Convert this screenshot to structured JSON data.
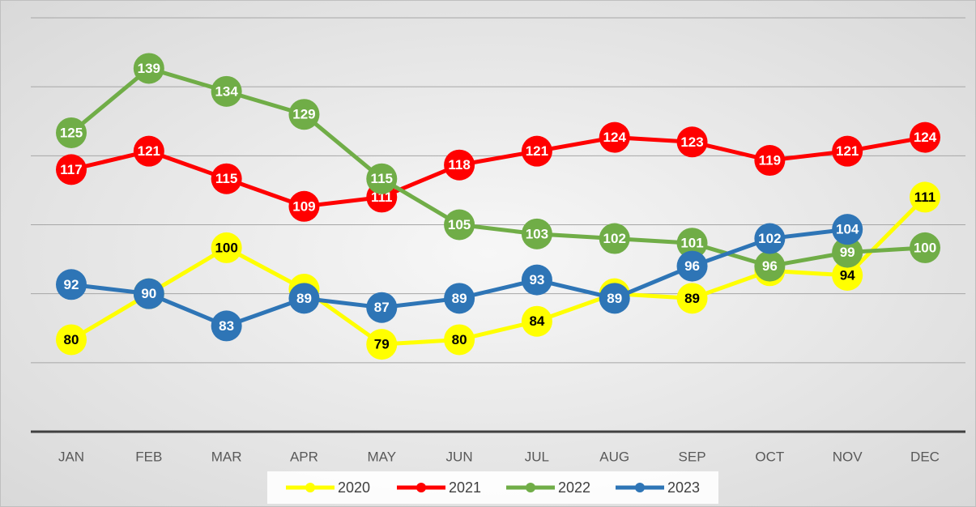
{
  "chart_data": {
    "type": "line",
    "categories": [
      "JAN",
      "FEB",
      "MAR",
      "APR",
      "MAY",
      "JUN",
      "JUL",
      "AUG",
      "SEP",
      "OCT",
      "NOV",
      "DEC"
    ],
    "series": [
      {
        "name": "2020",
        "color": "#ffff00",
        "values": [
          80,
          90,
          100,
          91,
          79,
          80,
          84,
          90,
          89,
          95,
          94,
          111
        ]
      },
      {
        "name": "2021",
        "color": "#ff0000",
        "values": [
          117,
          121,
          115,
          109,
          111,
          118,
          121,
          124,
          123,
          119,
          121,
          124
        ]
      },
      {
        "name": "2022",
        "color": "#70ad47",
        "values": [
          125,
          139,
          134,
          129,
          115,
          105,
          103,
          102,
          101,
          96,
          99,
          100
        ]
      },
      {
        "name": "2023",
        "color": "#2e75b6",
        "values": [
          92,
          90,
          83,
          89,
          87,
          89,
          93,
          89,
          96,
          102,
          104,
          null
        ]
      }
    ],
    "ylim": [
      60,
      150
    ],
    "yticks": [
      60,
      75,
      90,
      105,
      120,
      135,
      150
    ],
    "grid": true,
    "legend": "bottom"
  }
}
